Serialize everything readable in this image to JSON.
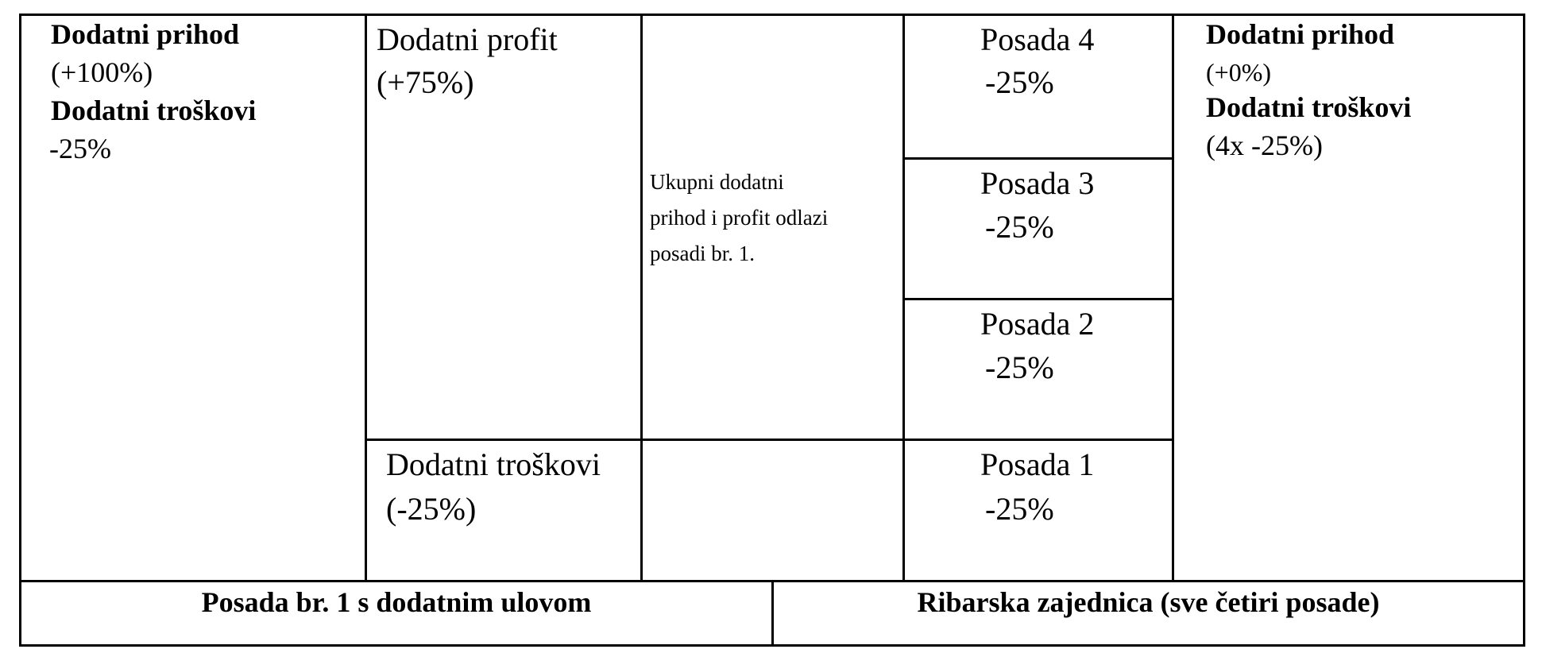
{
  "left_column": {
    "extra_income_title": "Dodatni prihod",
    "extra_income_value": "(+100%)",
    "extra_costs_title": "Dodatni troškovi",
    "extra_costs_value": "-25%"
  },
  "profit_column": {
    "extra_profit_title": "Dodatni profit",
    "extra_profit_value": "(+75%)",
    "extra_costs_title": "Dodatni troškovi",
    "extra_costs_value": "(-25%)"
  },
  "note": {
    "line1": "Ukupni dodatni",
    "line2": "prihod i profit odlazi",
    "line3": "posadi br. 1."
  },
  "crews": [
    {
      "name": "Posada 4",
      "value": "-25%"
    },
    {
      "name": "Posada 3",
      "value": "-25%"
    },
    {
      "name": "Posada 2",
      "value": "-25%"
    },
    {
      "name": "Posada 1",
      "value": "-25%"
    }
  ],
  "right_column": {
    "extra_income_title": "Dodatni prihod",
    "extra_income_value": "(+0%)",
    "extra_costs_title": "Dodatni troškovi",
    "extra_costs_value": "(4x -25%)"
  },
  "footer": {
    "left_label": "Posada br. 1 s dodatnim ulovom",
    "right_label": "Ribarska zajednica (sve četiri posade)"
  }
}
